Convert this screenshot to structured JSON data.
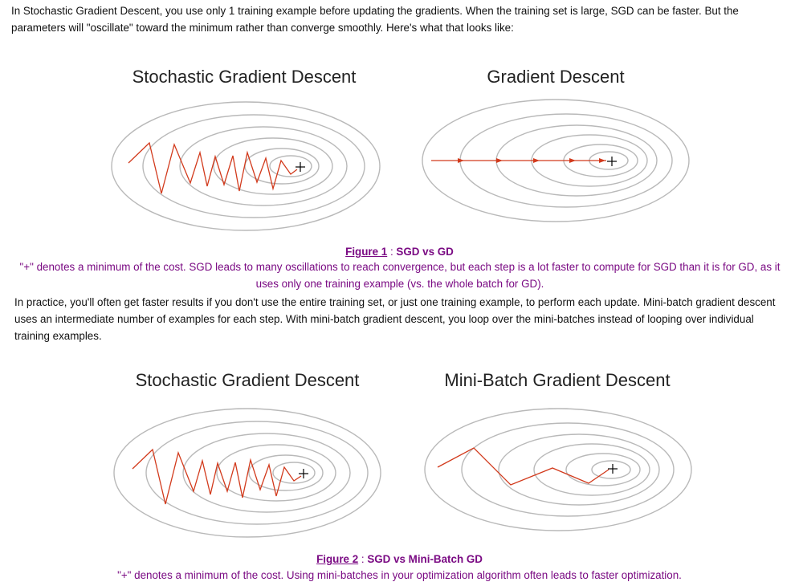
{
  "intro": "In Stochastic Gradient Descent, you use only 1 training example before updating the gradients. When the training set is large, SGD can be faster. But the parameters will \"oscillate\" toward the minimum rather than converge smoothly. Here's what that looks like:",
  "figure1": {
    "left_title": "Stochastic Gradient Descent",
    "right_title": "Gradient Descent",
    "link": "Figure 1",
    "sep": " : ",
    "label": "SGD vs GD",
    "caption": "\"+\" denotes a minimum of the cost. SGD leads to many oscillations to reach convergence, but each step is a lot faster to compute for SGD than it is for GD, as it uses only one training example (vs. the whole batch for GD)."
  },
  "middle": "In practice, you'll often get faster results if you don't use the entire training set, or just one training example, to perform each update. Mini-batch gradient descent uses an intermediate number of examples for each step. With mini-batch gradient descent, you loop over the mini-batches instead of looping over individual training examples.",
  "figure2": {
    "left_title": "Stochastic Gradient Descent",
    "right_title": "Mini-Batch Gradient Descent",
    "link": "Figure 2",
    "sep": " : ",
    "label": "SGD vs Mini-Batch GD",
    "caption": "\"+\" denotes a minimum of the cost. Using mini-batches in your optimization algorithm often leads to faster optimization."
  },
  "plus_symbol": "+",
  "colors": {
    "caption": "#7a0a83",
    "path": "#d23a1c",
    "contour": "#b9b9b9"
  }
}
